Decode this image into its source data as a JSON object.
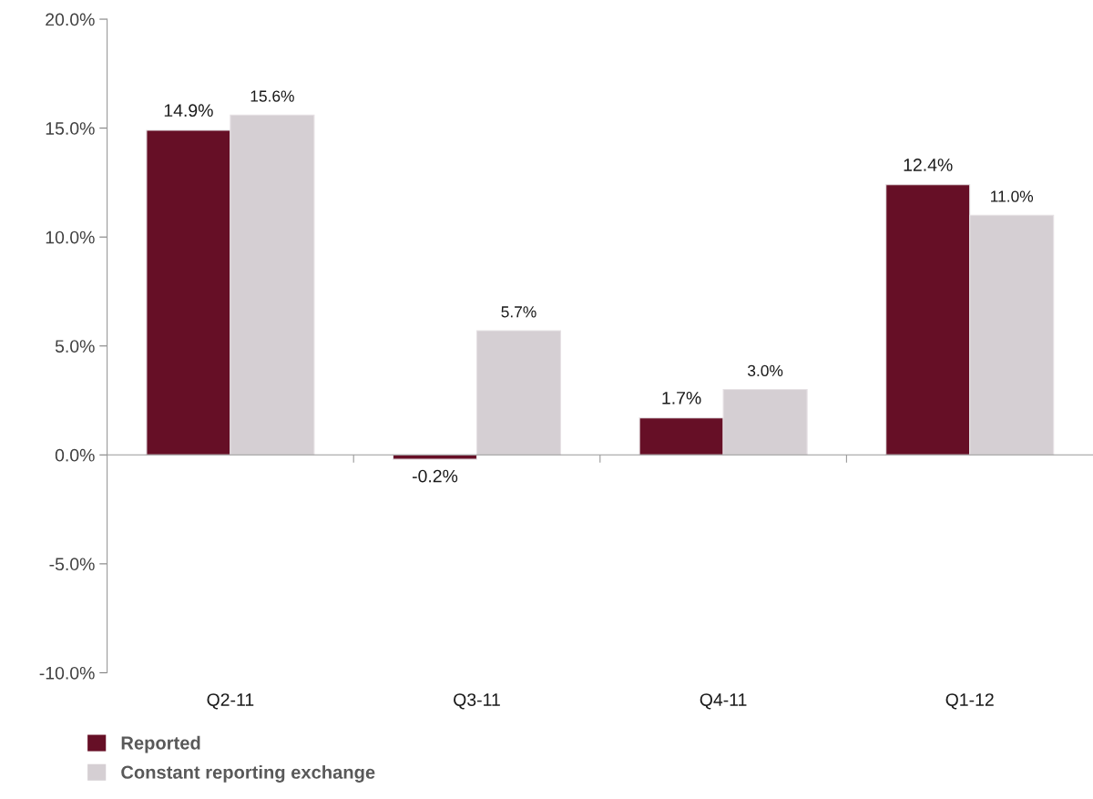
{
  "chart_data": {
    "type": "bar",
    "categories": [
      "Q2-11",
      "Q3-11",
      "Q4-11",
      "Q1-12"
    ],
    "series": [
      {
        "name": "Reported",
        "color": "#660f26",
        "values": [
          14.9,
          -0.2,
          1.7,
          12.4
        ],
        "value_labels": [
          "14.9%",
          "-0.2%",
          "1.7%",
          "12.4%"
        ]
      },
      {
        "name": "Constant reporting exchange",
        "color": "#d5cfd3",
        "values": [
          15.6,
          5.7,
          3.0,
          11.0
        ],
        "value_labels": [
          "15.6%",
          "5.7%",
          "3.0%",
          "11.0%"
        ]
      }
    ],
    "ylim": [
      -10,
      20
    ],
    "yticks": [
      {
        "value": -10,
        "label": "-10.0%"
      },
      {
        "value": -5,
        "label": "-5.0%"
      },
      {
        "value": 0,
        "label": "0.0%"
      },
      {
        "value": 5,
        "label": "5.0%"
      },
      {
        "value": 10,
        "label": "10.0%"
      },
      {
        "value": 15,
        "label": "15.0%"
      },
      {
        "value": 20,
        "label": "20.0%"
      }
    ],
    "legend": "bottom left"
  }
}
